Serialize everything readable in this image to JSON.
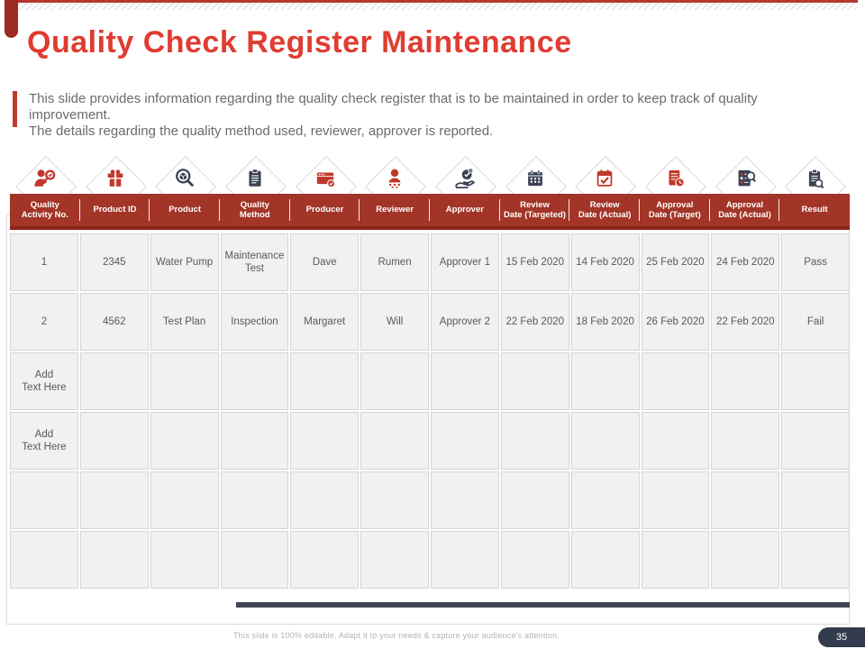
{
  "slide": {
    "title": "Quality Check Register Maintenance",
    "description": "This slide provides information regarding the quality check register that is to be maintained in order to keep track of quality improvement.\nThe details regarding the quality method used, reviewer, approver is reported.",
    "footer": {
      "note": "This slide is 100% editable. Adapt it to your needs & capture your audience's attention.",
      "page_number": "35"
    },
    "colors": {
      "title_red": "#e03c31",
      "header_red": "#a23528",
      "header_red_dark": "#872318",
      "icon_red": "#c0392b",
      "icon_dark": "#3a4254",
      "underline_bar": "#3e4553",
      "cell_gray": "#f1f1f1",
      "badge_navy": "#333c4e"
    },
    "table": {
      "columns": [
        {
          "label": "Quality\nActivity No.",
          "icon": "person-target-icon"
        },
        {
          "label": "Product ID",
          "icon": "gift-box-icon"
        },
        {
          "label": "Product",
          "icon": "search-product-icon"
        },
        {
          "label": "Quality\nMethod",
          "icon": "clipboard-icon"
        },
        {
          "label": "Producer",
          "icon": "card-badge-icon"
        },
        {
          "label": "Reviewer",
          "icon": "person-network-icon"
        },
        {
          "label": "Approver",
          "icon": "hand-check-icon"
        },
        {
          "label": "Review\nDate (Targeted)",
          "icon": "calendar-icon"
        },
        {
          "label": "Review\nDate (Actual)",
          "icon": "calendar-check-icon"
        },
        {
          "label": "Approval\nDate (Target)",
          "icon": "document-clock-icon"
        },
        {
          "label": "Approval\nDate (Actual)",
          "icon": "document-search-icon"
        },
        {
          "label": "Result",
          "icon": "clipboard-search-icon"
        }
      ],
      "rows": [
        [
          "1",
          "2345",
          "Water Pump",
          "Maintenance Test",
          "Dave",
          "Rumen",
          "Approver 1",
          "15 Feb 2020",
          "14 Feb 2020",
          "25 Feb 2020",
          "24 Feb 2020",
          "Pass"
        ],
        [
          "2",
          "4562",
          "Test Plan",
          "Inspection",
          "Margaret",
          "Will",
          "Approver 2",
          "22 Feb 2020",
          "18 Feb 2020",
          "26 Feb 2020",
          "22 Feb 2020",
          "Fail"
        ],
        [
          "Add\nText Here",
          "",
          "",
          "",
          "",
          "",
          "",
          "",
          "",
          "",
          "",
          ""
        ],
        [
          "Add\nText Here",
          "",
          "",
          "",
          "",
          "",
          "",
          "",
          "",
          "",
          "",
          ""
        ],
        [
          "",
          "",
          "",
          "",
          "",
          "",
          "",
          "",
          "",
          "",
          "",
          ""
        ],
        [
          "",
          "",
          "",
          "",
          "",
          "",
          "",
          "",
          "",
          "",
          "",
          ""
        ]
      ],
      "placeholder_text": "Add\nText Here"
    }
  }
}
